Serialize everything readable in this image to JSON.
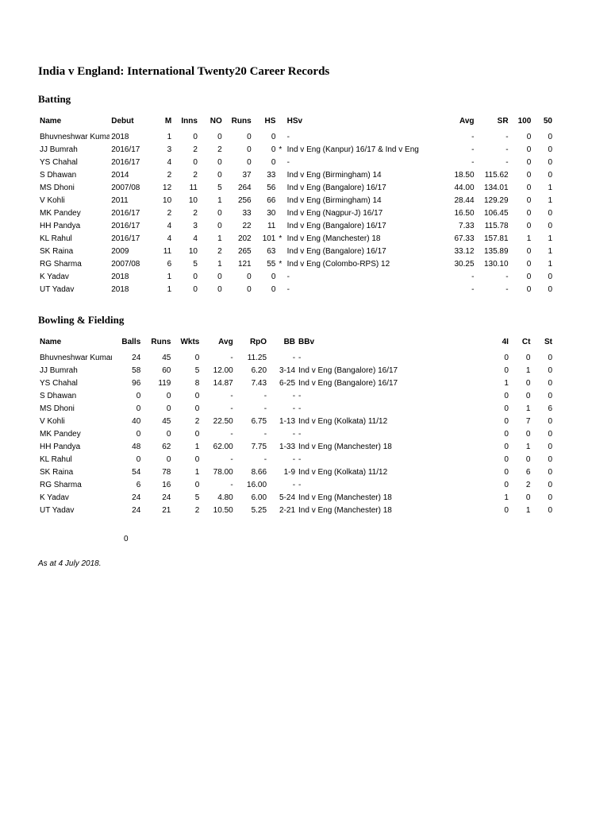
{
  "title": "India v England: International Twenty20 Career Records",
  "asAt": "As at 4 July 2018.",
  "stray": "0",
  "batting": {
    "heading": "Batting",
    "columns": [
      "Name",
      "Debut",
      "M",
      "Inns",
      "NO",
      "Runs",
      "HS",
      "",
      "HSv",
      "Avg",
      "SR",
      "100",
      "50"
    ],
    "rows": [
      [
        "Bhuvneshwar Kumar",
        "2018",
        "1",
        "0",
        "0",
        "0",
        "0",
        "",
        "-",
        "-",
        "-",
        "0",
        "0"
      ],
      [
        "JJ Bumrah",
        "2016/17",
        "3",
        "2",
        "2",
        "0",
        "0",
        "*",
        "Ind v Eng (Kanpur) 16/17 & Ind v Eng",
        "-",
        "-",
        "0",
        "0"
      ],
      [
        "YS Chahal",
        "2016/17",
        "4",
        "0",
        "0",
        "0",
        "0",
        "",
        "-",
        "-",
        "-",
        "0",
        "0"
      ],
      [
        "S Dhawan",
        "2014",
        "2",
        "2",
        "0",
        "37",
        "33",
        "",
        "Ind v Eng (Birmingham) 14",
        "18.50",
        "115.62",
        "0",
        "0"
      ],
      [
        "MS Dhoni",
        "2007/08",
        "12",
        "11",
        "5",
        "264",
        "56",
        "",
        "Ind v Eng (Bangalore) 16/17",
        "44.00",
        "134.01",
        "0",
        "1"
      ],
      [
        "V Kohli",
        "2011",
        "10",
        "10",
        "1",
        "256",
        "66",
        "",
        "Ind v Eng (Birmingham) 14",
        "28.44",
        "129.29",
        "0",
        "1"
      ],
      [
        "MK Pandey",
        "2016/17",
        "2",
        "2",
        "0",
        "33",
        "30",
        "",
        "Ind v Eng (Nagpur-J) 16/17",
        "16.50",
        "106.45",
        "0",
        "0"
      ],
      [
        "HH Pandya",
        "2016/17",
        "4",
        "3",
        "0",
        "22",
        "11",
        "",
        "Ind v Eng (Bangalore) 16/17",
        "7.33",
        "115.78",
        "0",
        "0"
      ],
      [
        "KL Rahul",
        "2016/17",
        "4",
        "4",
        "1",
        "202",
        "101",
        "*",
        "Ind v Eng (Manchester) 18",
        "67.33",
        "157.81",
        "1",
        "1"
      ],
      [
        "SK Raina",
        "2009",
        "11",
        "10",
        "2",
        "265",
        "63",
        "",
        "Ind v Eng (Bangalore) 16/17",
        "33.12",
        "135.89",
        "0",
        "1"
      ],
      [
        "RG Sharma",
        "2007/08",
        "6",
        "5",
        "1",
        "121",
        "55",
        "*",
        "Ind v Eng (Colombo-RPS) 12",
        "30.25",
        "130.10",
        "0",
        "1"
      ],
      [
        "K Yadav",
        "2018",
        "1",
        "0",
        "0",
        "0",
        "0",
        "",
        "-",
        "-",
        "-",
        "0",
        "0"
      ],
      [
        "UT Yadav",
        "2018",
        "1",
        "0",
        "0",
        "0",
        "0",
        "",
        "-",
        "-",
        "-",
        "0",
        "0"
      ]
    ]
  },
  "bowling": {
    "heading": "Bowling & Fielding",
    "columns": [
      "Name",
      "Balls",
      "Runs",
      "Wkts",
      "Avg",
      "RpO",
      "BB",
      "BBv",
      "4I",
      "Ct",
      "St"
    ],
    "rows": [
      [
        "Bhuvneshwar Kumar",
        "24",
        "45",
        "0",
        "-",
        "11.25",
        "-",
        "-",
        "0",
        "0",
        "0"
      ],
      [
        "JJ Bumrah",
        "58",
        "60",
        "5",
        "12.00",
        "6.20",
        "3-14",
        "Ind v Eng (Bangalore) 16/17",
        "0",
        "1",
        "0"
      ],
      [
        "YS Chahal",
        "96",
        "119",
        "8",
        "14.87",
        "7.43",
        "6-25",
        "Ind v Eng (Bangalore) 16/17",
        "1",
        "0",
        "0"
      ],
      [
        "S Dhawan",
        "0",
        "0",
        "0",
        "-",
        "-",
        "-",
        "-",
        "0",
        "0",
        "0"
      ],
      [
        "MS Dhoni",
        "0",
        "0",
        "0",
        "-",
        "-",
        "-",
        "-",
        "0",
        "1",
        "6"
      ],
      [
        "V Kohli",
        "40",
        "45",
        "2",
        "22.50",
        "6.75",
        "1-13",
        "Ind v Eng (Kolkata) 11/12",
        "0",
        "7",
        "0"
      ],
      [
        "MK Pandey",
        "0",
        "0",
        "0",
        "-",
        "-",
        "-",
        "-",
        "0",
        "0",
        "0"
      ],
      [
        "HH Pandya",
        "48",
        "62",
        "1",
        "62.00",
        "7.75",
        "1-33",
        "Ind v Eng (Manchester) 18",
        "0",
        "1",
        "0"
      ],
      [
        "KL Rahul",
        "0",
        "0",
        "0",
        "-",
        "-",
        "-",
        "-",
        "0",
        "0",
        "0"
      ],
      [
        "SK Raina",
        "54",
        "78",
        "1",
        "78.00",
        "8.66",
        "1-9",
        "Ind v Eng (Kolkata) 11/12",
        "0",
        "6",
        "0"
      ],
      [
        "RG Sharma",
        "6",
        "16",
        "0",
        "-",
        "16.00",
        "-",
        "-",
        "0",
        "2",
        "0"
      ],
      [
        "K Yadav",
        "24",
        "24",
        "5",
        "4.80",
        "6.00",
        "5-24",
        "Ind v Eng (Manchester) 18",
        "1",
        "0",
        "0"
      ],
      [
        "UT Yadav",
        "24",
        "21",
        "2",
        "10.50",
        "5.25",
        "2-21",
        "Ind v Eng (Manchester) 18",
        "0",
        "1",
        "0"
      ]
    ]
  },
  "layout": {
    "batting_col_widths": [
      88,
      48,
      30,
      32,
      30,
      36,
      30,
      10,
      194,
      40,
      42,
      28,
      26
    ],
    "bowling_col_widths": [
      88,
      36,
      36,
      34,
      40,
      40,
      34,
      220,
      34,
      26,
      26
    ],
    "batting_left_cols": [
      0,
      1,
      7,
      8
    ],
    "bowling_left_cols": [
      0,
      7
    ]
  }
}
